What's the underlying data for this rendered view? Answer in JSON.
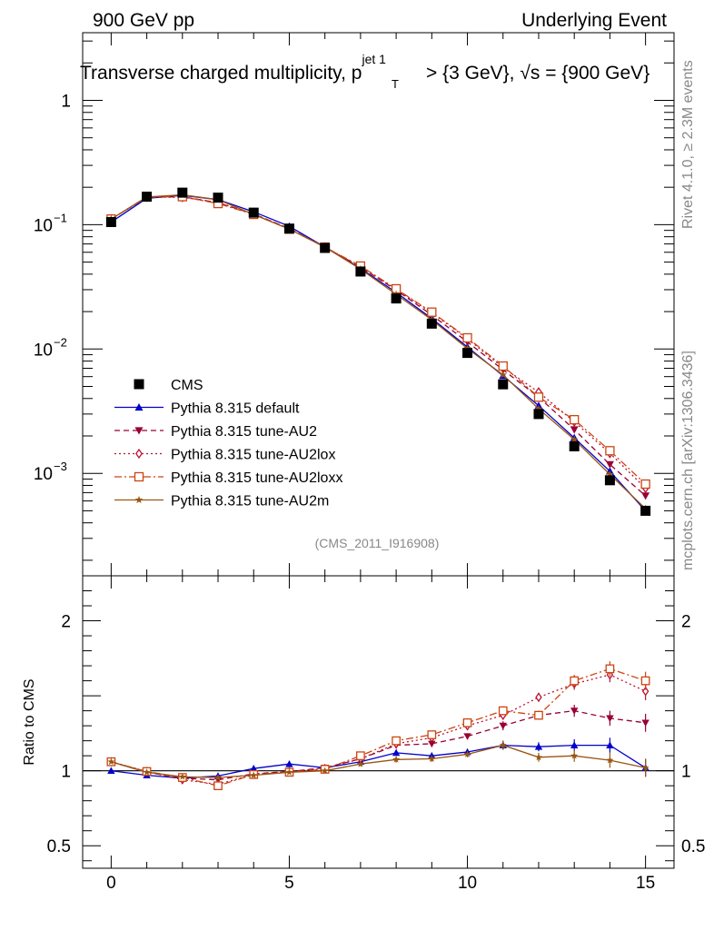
{
  "header": {
    "left": "900 GeV pp",
    "right": "Underlying Event"
  },
  "title": {
    "main": "Transverse charged multiplicity, p",
    "sup": "jet 1",
    "sub": "T",
    "rest": " > {3 GeV}, √s = {900 GeV}"
  },
  "side_labels": {
    "rivet": "Rivet 4.1.0, ≥ 2.3M events",
    "mcplots": "mcplots.cern.ch [arXiv:1306.3436]"
  },
  "analysis_id": "(CMS_2011_I916908)",
  "ratio_ylabel": "Ratio to CMS",
  "chart_data": [
    {
      "type": "line",
      "name": "main",
      "yscale": "log",
      "xlim": [
        -0.8,
        15.8
      ],
      "ylim": [
        0.00015,
        3.5
      ],
      "y_tick_labels": [
        {
          "base": "10",
          "exp": "−3",
          "value": 0.001
        },
        {
          "base": "10",
          "exp": "−2",
          "value": 0.01
        },
        {
          "base": "10",
          "exp": "−1",
          "value": 0.1
        },
        {
          "base": "1",
          "exp": "",
          "value": 1
        }
      ],
      "x": [
        0,
        1,
        2,
        3,
        4,
        5,
        6,
        7,
        8,
        9,
        10,
        11,
        12,
        13,
        14,
        15
      ],
      "reference": {
        "name": "CMS",
        "color": "#000000",
        "values": [
          0.105,
          0.168,
          0.181,
          0.165,
          0.125,
          0.093,
          0.065,
          0.042,
          0.0255,
          0.016,
          0.0093,
          0.0052,
          0.003,
          0.00165,
          0.00088,
          0.0005
        ]
      },
      "series": [
        {
          "name": "Pythia 8.315 default",
          "color": "#0000cc",
          "dash": "",
          "marker": "triangle-up",
          "values": [
            0.105,
            0.163,
            0.172,
            0.159,
            0.127,
            0.097,
            0.066,
            0.0445,
            0.0285,
            0.0176,
            0.0104,
            0.0061,
            0.0035,
            0.00193,
            0.00104,
            0.0005
          ]
        },
        {
          "name": "Pythia 8.315 tune-AU2",
          "color": "#990033",
          "dash": "6,4",
          "marker": "triangle-down",
          "values": [
            0.111,
            0.166,
            0.168,
            0.15,
            0.122,
            0.093,
            0.066,
            0.0456,
            0.0298,
            0.0188,
            0.0114,
            0.0068,
            0.0041,
            0.00225,
            0.00118,
            0.00066
          ]
        },
        {
          "name": "Pythia 8.315 tune-AU2lox",
          "color": "#bb1133",
          "dash": "2,3",
          "marker": "diamond-open",
          "values": [
            0.111,
            0.167,
            0.166,
            0.151,
            0.122,
            0.093,
            0.066,
            0.0455,
            0.0302,
            0.0196,
            0.0121,
            0.0071,
            0.0045,
            0.0026,
            0.00145,
            0.00076
          ]
        },
        {
          "name": "Pythia 8.315 tune-AU2loxx",
          "color": "#cc4411",
          "dash": "8,3,2,3",
          "marker": "square-open",
          "values": [
            0.111,
            0.167,
            0.168,
            0.148,
            0.121,
            0.092,
            0.066,
            0.0465,
            0.0305,
            0.0198,
            0.0123,
            0.0073,
            0.0041,
            0.0027,
            0.00152,
            0.00082
          ]
        },
        {
          "name": "Pythia 8.315 tune-AU2m",
          "color": "#995511",
          "dash": "",
          "marker": "star",
          "values": [
            0.111,
            0.167,
            0.174,
            0.159,
            0.121,
            0.092,
            0.066,
            0.0439,
            0.0275,
            0.0172,
            0.0101,
            0.0062,
            0.0033,
            0.00187,
            0.00098,
            0.00052
          ]
        }
      ]
    },
    {
      "type": "line",
      "name": "ratio",
      "ylabel": "Ratio to CMS",
      "xlim": [
        -0.8,
        15.8
      ],
      "ylim": [
        0.35,
        2.3
      ],
      "x_ticks": [
        0,
        5,
        10,
        15
      ],
      "y_ticks": [
        0.5,
        1,
        2
      ],
      "y_tick_labels": [
        "0.5",
        "1",
        "2"
      ],
      "series": [
        {
          "name": "Pythia 8.315 default",
          "values": [
            1.0,
            0.97,
            0.95,
            0.965,
            1.015,
            1.045,
            1.02,
            1.06,
            1.12,
            1.1,
            1.125,
            1.17,
            1.16,
            1.17,
            1.17,
            1.02
          ],
          "errors": [
            0.01,
            0.01,
            0.01,
            0.01,
            0.01,
            0.01,
            0.01,
            0.015,
            0.02,
            0.02,
            0.02,
            0.03,
            0.03,
            0.04,
            0.05,
            0.06
          ]
        },
        {
          "name": "Pythia 8.315 tune-AU2",
          "values": [
            1.06,
            0.99,
            0.95,
            0.94,
            0.98,
            0.995,
            1.02,
            1.08,
            1.17,
            1.18,
            1.23,
            1.3,
            1.37,
            1.4,
            1.35,
            1.32
          ],
          "errors": [
            0.01,
            0.01,
            0.01,
            0.01,
            0.01,
            0.01,
            0.01,
            0.015,
            0.02,
            0.02,
            0.02,
            0.03,
            0.03,
            0.04,
            0.05,
            0.06
          ]
        },
        {
          "name": "Pythia 8.315 tune-AU2lox",
          "values": [
            1.06,
            0.995,
            0.94,
            0.91,
            0.975,
            0.995,
            1.015,
            1.08,
            1.18,
            1.22,
            1.3,
            1.37,
            1.49,
            1.58,
            1.64,
            1.53
          ],
          "errors": [
            0.01,
            0.01,
            0.01,
            0.01,
            0.01,
            0.01,
            0.01,
            0.015,
            0.02,
            0.02,
            0.02,
            0.03,
            0.03,
            0.04,
            0.05,
            0.06
          ]
        },
        {
          "name": "Pythia 8.315 tune-AU2loxx",
          "values": [
            1.06,
            0.995,
            0.955,
            0.9,
            0.975,
            0.99,
            1.01,
            1.1,
            1.2,
            1.24,
            1.32,
            1.4,
            1.37,
            1.6,
            1.68,
            1.6
          ],
          "errors": [
            0.01,
            0.01,
            0.01,
            0.01,
            0.01,
            0.01,
            0.01,
            0.015,
            0.02,
            0.02,
            0.02,
            0.03,
            0.03,
            0.04,
            0.05,
            0.06
          ]
        },
        {
          "name": "Pythia 8.315 tune-AU2m",
          "values": [
            1.06,
            0.99,
            0.96,
            0.955,
            0.97,
            0.99,
            1.0,
            1.045,
            1.075,
            1.08,
            1.11,
            1.17,
            1.09,
            1.1,
            1.07,
            1.02
          ],
          "errors": [
            0.01,
            0.01,
            0.01,
            0.01,
            0.01,
            0.01,
            0.01,
            0.015,
            0.02,
            0.02,
            0.02,
            0.03,
            0.03,
            0.04,
            0.05,
            0.06
          ]
        }
      ]
    }
  ]
}
